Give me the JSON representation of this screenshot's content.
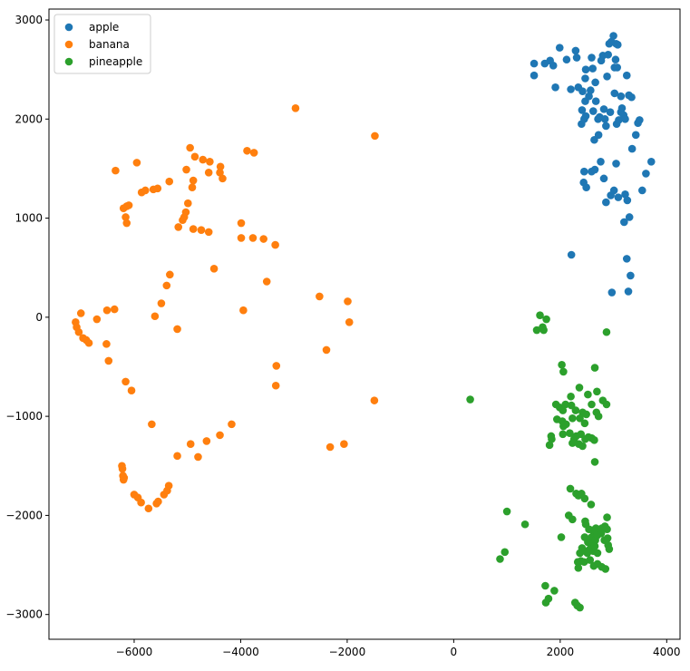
{
  "chart_data": {
    "type": "scatter",
    "title": "",
    "xlabel": "",
    "ylabel": "",
    "xlim": [
      -7600,
      4250
    ],
    "ylim": [
      -3250,
      3110
    ],
    "xticks": [
      -6000,
      -4000,
      -2000,
      0,
      2000,
      4000
    ],
    "yticks": [
      -3000,
      -2000,
      -1000,
      0,
      1000,
      2000,
      3000
    ],
    "xtick_labels": [
      "−6000",
      "−4000",
      "−2000",
      "0",
      "2000",
      "4000"
    ],
    "ytick_labels": [
      "−3000",
      "−2000",
      "−1000",
      "0",
      "1000",
      "2000",
      "3000"
    ],
    "grid": false,
    "legend_position": "top-left",
    "series": [
      {
        "name": "apple",
        "color": "#1f77b4",
        "points": [
          [
            1510,
            2560
          ],
          [
            1510,
            2440
          ],
          [
            1710,
            2560
          ],
          [
            1810,
            2590
          ],
          [
            1870,
            2540
          ],
          [
            1910,
            2320
          ],
          [
            1990,
            2720
          ],
          [
            2120,
            2600
          ],
          [
            2200,
            2300
          ],
          [
            2210,
            630
          ],
          [
            2290,
            2690
          ],
          [
            2310,
            2620
          ],
          [
            2340,
            2320
          ],
          [
            2400,
            1950
          ],
          [
            2410,
            2090
          ],
          [
            2420,
            2280
          ],
          [
            2450,
            2000
          ],
          [
            2470,
            2180
          ],
          [
            2470,
            2410
          ],
          [
            2480,
            2030
          ],
          [
            2480,
            2500
          ],
          [
            2540,
            2230
          ],
          [
            2570,
            2290
          ],
          [
            2590,
            2620
          ],
          [
            2610,
            2510
          ],
          [
            2620,
            2080
          ],
          [
            2640,
            1790
          ],
          [
            2660,
            2370
          ],
          [
            2670,
            2180
          ],
          [
            2710,
            2000
          ],
          [
            2720,
            1840
          ],
          [
            2740,
            2020
          ],
          [
            2770,
            2590
          ],
          [
            2800,
            2640
          ],
          [
            2820,
            2100
          ],
          [
            2840,
            2000
          ],
          [
            2860,
            1930
          ],
          [
            2880,
            2430
          ],
          [
            2900,
            2650
          ],
          [
            2920,
            2760
          ],
          [
            2940,
            2070
          ],
          [
            2960,
            2780
          ],
          [
            3000,
            2840
          ],
          [
            3020,
            2260
          ],
          [
            3020,
            2520
          ],
          [
            3040,
            2600
          ],
          [
            3050,
            2760
          ],
          [
            3060,
            1950
          ],
          [
            3070,
            2520
          ],
          [
            3080,
            2750
          ],
          [
            3100,
            1990
          ],
          [
            3140,
            2230
          ],
          [
            3140,
            2070
          ],
          [
            3160,
            2110
          ],
          [
            3190,
            2040
          ],
          [
            3220,
            2000
          ],
          [
            3250,
            2440
          ],
          [
            3290,
            2240
          ],
          [
            3340,
            2220
          ],
          [
            3350,
            1700
          ],
          [
            3420,
            1840
          ],
          [
            3460,
            1960
          ],
          [
            3490,
            1990
          ],
          [
            2450,
            1470
          ],
          [
            2440,
            1360
          ],
          [
            2490,
            1310
          ],
          [
            2590,
            1470
          ],
          [
            2650,
            1490
          ],
          [
            2760,
            1570
          ],
          [
            2820,
            1400
          ],
          [
            2860,
            1160
          ],
          [
            2950,
            1230
          ],
          [
            3010,
            1280
          ],
          [
            3050,
            1550
          ],
          [
            3090,
            1210
          ],
          [
            3200,
            960
          ],
          [
            3220,
            1240
          ],
          [
            3260,
            1180
          ],
          [
            3300,
            1010
          ],
          [
            3250,
            590
          ],
          [
            3320,
            420
          ],
          [
            3280,
            260
          ],
          [
            2970,
            250
          ],
          [
            3540,
            1280
          ],
          [
            3610,
            1450
          ],
          [
            3710,
            1570
          ]
        ]
      },
      {
        "name": "banana",
        "color": "#ff7f0e",
        "points": [
          [
            -6350,
            1480
          ],
          [
            -6200,
            1100
          ],
          [
            -6160,
            1010
          ],
          [
            -6140,
            950
          ],
          [
            -6140,
            1120
          ],
          [
            -6100,
            1130
          ],
          [
            -5950,
            1560
          ],
          [
            -5860,
            1260
          ],
          [
            -5790,
            1280
          ],
          [
            -5640,
            1290
          ],
          [
            -5560,
            1300
          ],
          [
            -5340,
            1370
          ],
          [
            -5170,
            910
          ],
          [
            -5090,
            980
          ],
          [
            -5060,
            1010
          ],
          [
            -5030,
            1060
          ],
          [
            -5020,
            1490
          ],
          [
            -4990,
            1150
          ],
          [
            -4950,
            1710
          ],
          [
            -4910,
            1310
          ],
          [
            -4890,
            1380
          ],
          [
            -4860,
            1620
          ],
          [
            -4890,
            890
          ],
          [
            -4740,
            880
          ],
          [
            -4710,
            1590
          ],
          [
            -4600,
            860
          ],
          [
            -4600,
            1460
          ],
          [
            -4580,
            1570
          ],
          [
            -4390,
            1460
          ],
          [
            -4380,
            1520
          ],
          [
            -4340,
            1400
          ],
          [
            -3990,
            950
          ],
          [
            -3990,
            800
          ],
          [
            -3880,
            1680
          ],
          [
            -3770,
            800
          ],
          [
            -3750,
            1660
          ],
          [
            -3570,
            790
          ],
          [
            -3350,
            730
          ],
          [
            -2970,
            2110
          ],
          [
            -1480,
            1830
          ],
          [
            -7100,
            -50
          ],
          [
            -7080,
            -100
          ],
          [
            -7040,
            -150
          ],
          [
            -7000,
            40
          ],
          [
            -6960,
            -210
          ],
          [
            -6900,
            -230
          ],
          [
            -6850,
            -260
          ],
          [
            -6700,
            -20
          ],
          [
            -6520,
            -270
          ],
          [
            -6480,
            -440
          ],
          [
            -6510,
            70
          ],
          [
            -6370,
            80
          ],
          [
            -6160,
            -650
          ],
          [
            -6050,
            -740
          ],
          [
            -5610,
            10
          ],
          [
            -5490,
            140
          ],
          [
            -5390,
            320
          ],
          [
            -5330,
            430
          ],
          [
            -5190,
            -120
          ],
          [
            -4500,
            490
          ],
          [
            -3950,
            70
          ],
          [
            -3510,
            360
          ],
          [
            -3330,
            -490
          ],
          [
            -3340,
            -690
          ],
          [
            -2520,
            210
          ],
          [
            -2390,
            -330
          ],
          [
            -1990,
            160
          ],
          [
            -1960,
            -50
          ],
          [
            -1490,
            -840
          ],
          [
            -5670,
            -1080
          ],
          [
            -5190,
            -1400
          ],
          [
            -4940,
            -1280
          ],
          [
            -4800,
            -1410
          ],
          [
            -4640,
            -1250
          ],
          [
            -4390,
            -1190
          ],
          [
            -4170,
            -1080
          ],
          [
            -2320,
            -1310
          ],
          [
            -2060,
            -1280
          ],
          [
            -6230,
            -1500
          ],
          [
            -6220,
            -1530
          ],
          [
            -6210,
            -1600
          ],
          [
            -6200,
            -1640
          ],
          [
            -6190,
            -1620
          ],
          [
            -6000,
            -1790
          ],
          [
            -5930,
            -1820
          ],
          [
            -5870,
            -1870
          ],
          [
            -5730,
            -1930
          ],
          [
            -5580,
            -1880
          ],
          [
            -5550,
            -1860
          ],
          [
            -5440,
            -1790
          ],
          [
            -5380,
            -1750
          ],
          [
            -5350,
            -1700
          ]
        ]
      },
      {
        "name": "pineapple",
        "color": "#2ca02c",
        "points": [
          [
            1560,
            -130
          ],
          [
            1620,
            20
          ],
          [
            1670,
            -100
          ],
          [
            1690,
            -130
          ],
          [
            1740,
            -20
          ],
          [
            2870,
            -150
          ],
          [
            310,
            -830
          ],
          [
            2030,
            -480
          ],
          [
            2060,
            -550
          ],
          [
            2650,
            -510
          ],
          [
            2360,
            -710
          ],
          [
            2520,
            -780
          ],
          [
            2690,
            -750
          ],
          [
            2800,
            -840
          ],
          [
            2870,
            -880
          ],
          [
            2200,
            -800
          ],
          [
            1920,
            -880
          ],
          [
            1990,
            -910
          ],
          [
            2050,
            -940
          ],
          [
            2100,
            -880
          ],
          [
            2210,
            -890
          ],
          [
            2290,
            -940
          ],
          [
            2420,
            -960
          ],
          [
            2490,
            -980
          ],
          [
            2590,
            -880
          ],
          [
            2680,
            -960
          ],
          [
            2720,
            -1000
          ],
          [
            1940,
            -1030
          ],
          [
            2040,
            -1050
          ],
          [
            2060,
            -1100
          ],
          [
            2110,
            -1080
          ],
          [
            2230,
            -1020
          ],
          [
            2370,
            -1020
          ],
          [
            2460,
            -1070
          ],
          [
            2050,
            -1180
          ],
          [
            2180,
            -1170
          ],
          [
            2230,
            -1270
          ],
          [
            2260,
            -1230
          ],
          [
            2300,
            -1200
          ],
          [
            2350,
            -1280
          ],
          [
            2390,
            -1180
          ],
          [
            2420,
            -1300
          ],
          [
            2470,
            -1230
          ],
          [
            2530,
            -1210
          ],
          [
            2590,
            -1220
          ],
          [
            2640,
            -1240
          ],
          [
            2650,
            -1460
          ],
          [
            1800,
            -1290
          ],
          [
            1840,
            -1230
          ],
          [
            1830,
            -1200
          ],
          [
            2190,
            -1730
          ],
          [
            2300,
            -1780
          ],
          [
            2340,
            -1800
          ],
          [
            2400,
            -1780
          ],
          [
            2460,
            -1830
          ],
          [
            2580,
            -1890
          ],
          [
            2880,
            -2020
          ],
          [
            1000,
            -1960
          ],
          [
            1340,
            -2090
          ],
          [
            2160,
            -2000
          ],
          [
            2230,
            -2040
          ],
          [
            2470,
            -2060
          ],
          [
            2480,
            -2090
          ],
          [
            2540,
            -2140
          ],
          [
            2610,
            -2150
          ],
          [
            2640,
            -2180
          ],
          [
            2670,
            -2130
          ],
          [
            2780,
            -2130
          ],
          [
            2840,
            -2110
          ],
          [
            2880,
            -2140
          ],
          [
            2020,
            -2220
          ],
          [
            2460,
            -2220
          ],
          [
            2520,
            -2270
          ],
          [
            2590,
            -2220
          ],
          [
            2610,
            -2290
          ],
          [
            2660,
            -2250
          ],
          [
            2700,
            -2200
          ],
          [
            2770,
            -2180
          ],
          [
            2830,
            -2250
          ],
          [
            2900,
            -2300
          ],
          [
            2890,
            -2230
          ],
          [
            2920,
            -2340
          ],
          [
            2410,
            -2330
          ],
          [
            2370,
            -2380
          ],
          [
            2470,
            -2360
          ],
          [
            2510,
            -2380
          ],
          [
            2560,
            -2340
          ],
          [
            2620,
            -2360
          ],
          [
            2650,
            -2310
          ],
          [
            2700,
            -2380
          ],
          [
            2330,
            -2470
          ],
          [
            2340,
            -2530
          ],
          [
            2390,
            -2460
          ],
          [
            2450,
            -2470
          ],
          [
            2560,
            -2450
          ],
          [
            2630,
            -2510
          ],
          [
            2700,
            -2490
          ],
          [
            2780,
            -2520
          ],
          [
            2850,
            -2540
          ],
          [
            960,
            -2370
          ],
          [
            870,
            -2440
          ],
          [
            1720,
            -2710
          ],
          [
            1730,
            -2880
          ],
          [
            1780,
            -2840
          ],
          [
            1890,
            -2760
          ],
          [
            2280,
            -2880
          ],
          [
            2320,
            -2910
          ],
          [
            2370,
            -2930
          ]
        ]
      }
    ]
  }
}
